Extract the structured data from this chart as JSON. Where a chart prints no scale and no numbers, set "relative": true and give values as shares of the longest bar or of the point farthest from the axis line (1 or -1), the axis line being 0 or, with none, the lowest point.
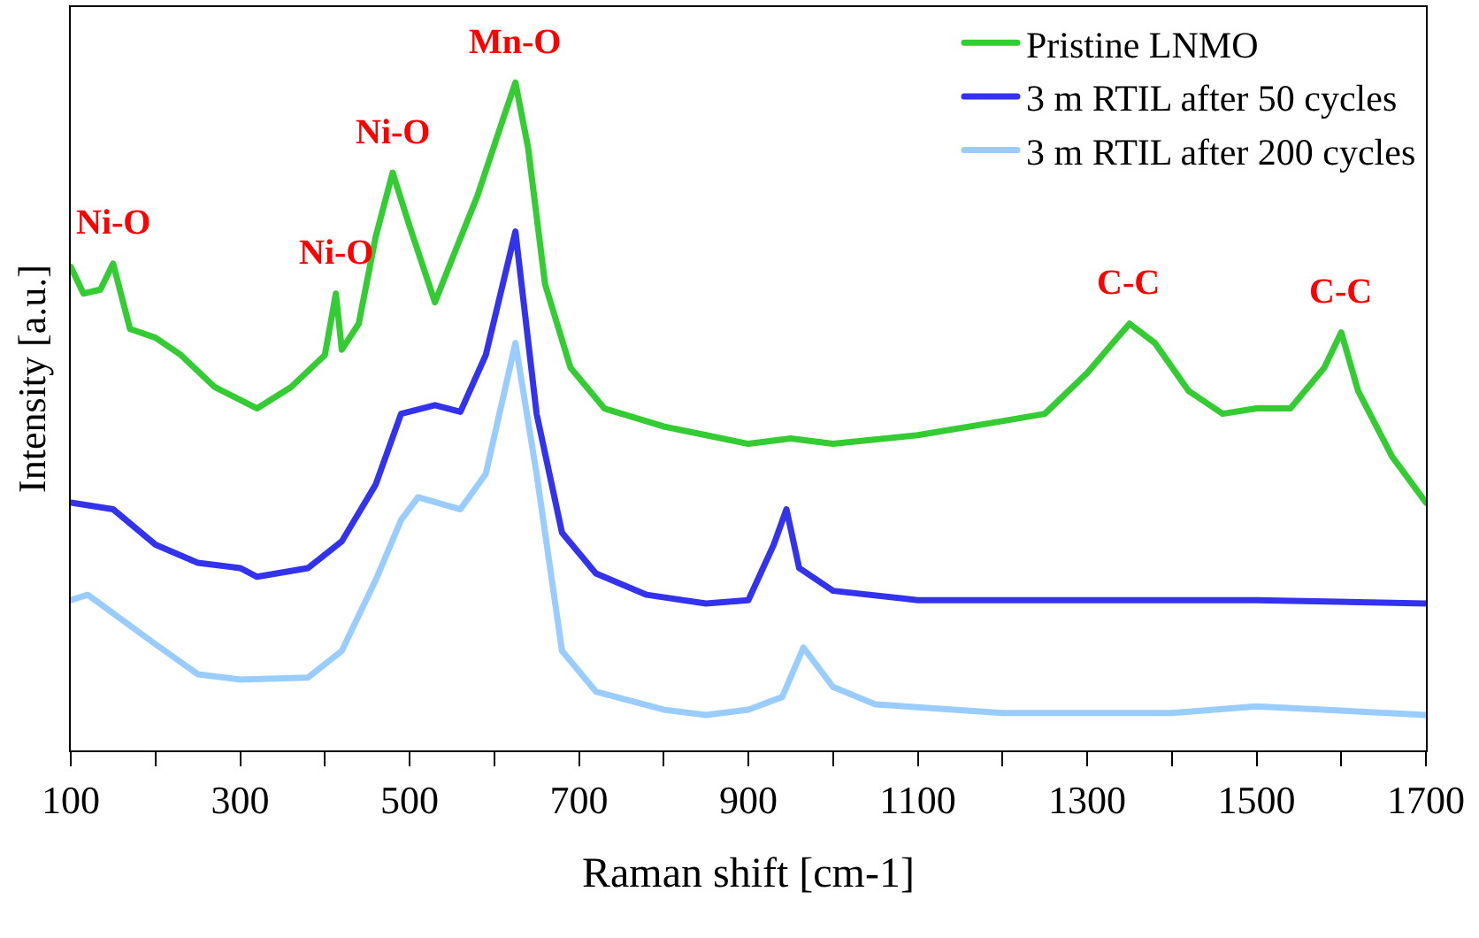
{
  "chart_data": {
    "type": "line",
    "relative": true,
    "xlabel": "Raman shift [cm-1]",
    "ylabel": "Intensity [a.u.]",
    "xlim": [
      100,
      1700
    ],
    "xticks": [
      100,
      {
        "value": 200,
        "label": null
      },
      300,
      {
        "value": 400,
        "label": null
      },
      500,
      {
        "value": 600,
        "label": null
      },
      700,
      {
        "value": 800,
        "label": null
      },
      900,
      {
        "value": 1000,
        "label": null
      },
      1100,
      {
        "value": 1200,
        "label": null
      },
      1300,
      {
        "value": 1400,
        "label": null
      },
      1500,
      {
        "value": 1600,
        "label": null
      },
      1700
    ],
    "grid": false,
    "legend": "top right",
    "line_style": "solid",
    "marker": "none",
    "series": [
      {
        "name": "Pristine LNMO",
        "color": "#33cc33",
        "x": [
          100,
          115,
          135,
          150,
          170,
          200,
          230,
          270,
          300,
          320,
          360,
          400,
          413,
          420,
          440,
          460,
          480,
          500,
          530,
          555,
          580,
          610,
          625,
          640,
          660,
          690,
          730,
          800,
          850,
          900,
          950,
          1000,
          1100,
          1200,
          1250,
          1300,
          1350,
          1380,
          1420,
          1460,
          1500,
          1540,
          1580,
          1600,
          1620,
          1660,
          1700
        ],
        "values": [
          0.724,
          0.684,
          0.69,
          0.729,
          0.631,
          0.618,
          0.592,
          0.544,
          0.525,
          0.512,
          0.544,
          0.592,
          0.684,
          0.6,
          0.639,
          0.769,
          0.865,
          0.785,
          0.671,
          0.751,
          0.83,
          0.944,
          1,
          0.902,
          0.698,
          0.573,
          0.512,
          0.485,
          0.472,
          0.459,
          0.467,
          0.459,
          0.472,
          0.493,
          0.504,
          0.565,
          0.639,
          0.61,
          0.538,
          0.504,
          0.512,
          0.512,
          0.573,
          0.626,
          0.538,
          0.44,
          0.371
        ]
      },
      {
        "name": "3 m RTIL after 50 cycles",
        "color": "#3333ee",
        "x": [
          100,
          150,
          200,
          250,
          300,
          320,
          380,
          420,
          460,
          490,
          530,
          560,
          590,
          625,
          650,
          680,
          720,
          780,
          850,
          900,
          930,
          945,
          960,
          1000,
          1100,
          1300,
          1500,
          1700
        ],
        "values": [
          0.371,
          0.361,
          0.308,
          0.281,
          0.273,
          0.26,
          0.273,
          0.313,
          0.398,
          0.504,
          0.517,
          0.507,
          0.592,
          0.777,
          0.504,
          0.326,
          0.265,
          0.233,
          0.22,
          0.225,
          0.308,
          0.361,
          0.273,
          0.239,
          0.225,
          0.225,
          0.225,
          0.22
        ]
      },
      {
        "name": "3 m RTIL after 200 cycles",
        "color": "#99ccff",
        "x": [
          100,
          120,
          200,
          250,
          300,
          380,
          420,
          460,
          490,
          510,
          560,
          590,
          625,
          650,
          680,
          720,
          800,
          850,
          900,
          940,
          965,
          1000,
          1050,
          1200,
          1400,
          1500,
          1700
        ],
        "values": [
          0.225,
          0.233,
          0.159,
          0.114,
          0.106,
          0.109,
          0.149,
          0.255,
          0.345,
          0.379,
          0.361,
          0.414,
          0.61,
          0.414,
          0.149,
          0.088,
          0.061,
          0.053,
          0.061,
          0.08,
          0.154,
          0.095,
          0.069,
          0.056,
          0.056,
          0.066,
          0.053
        ]
      }
    ],
    "annotations": [
      {
        "text": "Ni-O",
        "x": 150,
        "y": 0.729
      },
      {
        "text": "Ni-O",
        "x": 413,
        "y": 0.684
      },
      {
        "text": "Ni-O",
        "x": 480,
        "y": 0.865
      },
      {
        "text": "Mn-O",
        "x": 625,
        "y": 1
      },
      {
        "text": "C-C",
        "x": 1350,
        "y": 0.639
      },
      {
        "text": "C-C",
        "x": 1600,
        "y": 0.626
      }
    ]
  }
}
